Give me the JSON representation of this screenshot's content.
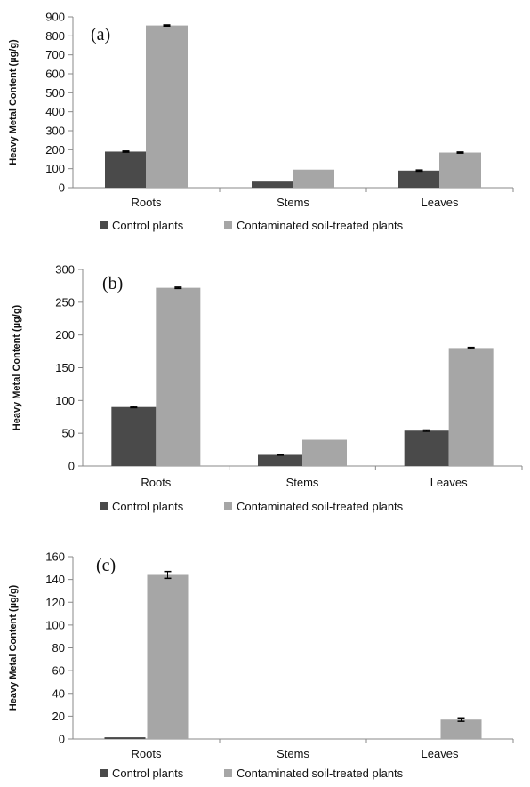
{
  "chart_data": [
    {
      "type": "bar",
      "panel_label": "(a)",
      "categories": [
        "Roots",
        "Stems",
        "Leaves"
      ],
      "series": [
        {
          "name": "Control plants",
          "values": [
            190,
            32,
            90
          ],
          "errors": [
            3,
            0,
            3
          ],
          "color": "#4a4a4a"
        },
        {
          "name": "Contaminated soil-treated plants",
          "values": [
            855,
            95,
            185
          ],
          "errors": [
            3,
            0,
            3
          ],
          "color": "#a6a6a6"
        }
      ],
      "ylabel": "Heavy Metal Content (µg/g)",
      "ylim": [
        0,
        900
      ],
      "yticks": [
        0,
        100,
        200,
        300,
        400,
        500,
        600,
        700,
        800,
        900
      ],
      "legend": "bottom",
      "grid": false
    },
    {
      "type": "bar",
      "panel_label": "(b)",
      "categories": [
        "Roots",
        "Stems",
        "Leaves"
      ],
      "series": [
        {
          "name": "Control plants",
          "values": [
            90,
            17,
            54
          ],
          "errors": [
            1,
            0.5,
            1
          ],
          "color": "#4a4a4a"
        },
        {
          "name": "Contaminated soil-treated plants",
          "values": [
            272,
            40,
            180
          ],
          "errors": [
            1,
            0,
            1
          ],
          "color": "#a6a6a6"
        }
      ],
      "ylabel": "Heavy Metal Content (µg/g)",
      "ylim": [
        0,
        300
      ],
      "yticks": [
        0,
        50,
        100,
        150,
        200,
        250,
        300
      ],
      "legend": "bottom",
      "grid": false
    },
    {
      "type": "bar",
      "panel_label": "(c)",
      "categories": [
        "Roots",
        "Stems",
        "Leaves"
      ],
      "series": [
        {
          "name": "Control plants",
          "values": [
            1.5,
            0,
            0
          ],
          "errors": [
            0,
            0,
            0
          ],
          "color": "#4a4a4a"
        },
        {
          "name": "Contaminated soil-treated plants",
          "values": [
            144,
            0,
            17
          ],
          "errors": [
            3,
            0,
            1.5
          ],
          "color": "#a6a6a6"
        }
      ],
      "ylabel": "Heavy Metal Content (µg/g)",
      "ylim": [
        0,
        160
      ],
      "yticks": [
        0,
        20,
        40,
        60,
        80,
        100,
        120,
        140,
        160
      ],
      "legend": "bottom",
      "grid": false
    }
  ]
}
